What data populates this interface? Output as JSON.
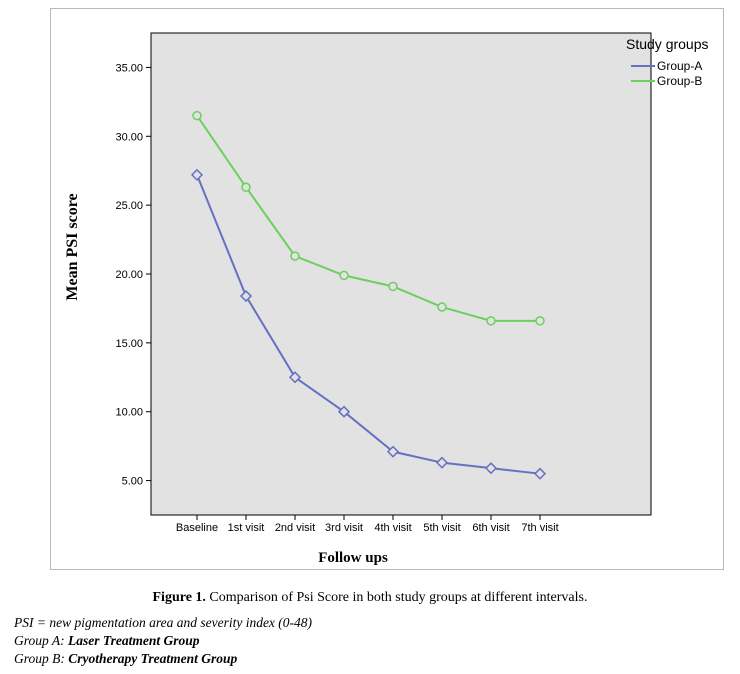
{
  "caption": {
    "label": "Figure 1.",
    "text": " Comparison of Psi Score in both study groups at different intervals."
  },
  "notes": {
    "psi": "PSI = new pigmentation area and severity index (0-48)",
    "group_a_prefix": "Group A: ",
    "group_a_text": "Laser Treatment Group",
    "group_b_prefix": "Group B: ",
    "group_b_text": "Cryotherapy Treatment Group"
  },
  "colors": {
    "group_a": "#6670c4",
    "group_b": "#6ccf5e",
    "plot_bg": "#e2e2e2"
  },
  "chart_data": {
    "type": "line",
    "xlabel": "Follow ups",
    "ylabel": "Mean PSI score",
    "categories": [
      "Baseline",
      "1st visit",
      "2nd visit",
      "3rd visit",
      "4th visit",
      "5th visit",
      "6th visit",
      "7th visit"
    ],
    "ylim": [
      2.5,
      37.5
    ],
    "yticks": [
      "5.00",
      "10.00",
      "15.00",
      "20.00",
      "25.00",
      "30.00",
      "35.00"
    ],
    "ytick_values": [
      5,
      10,
      15,
      20,
      25,
      30,
      35
    ],
    "grid": false,
    "legend_title": "Study groups",
    "legend_position": "right",
    "series": [
      {
        "name": "Group-A",
        "marker": "diamond",
        "values": [
          27.2,
          18.4,
          12.5,
          10.0,
          7.1,
          6.3,
          5.9,
          5.5
        ]
      },
      {
        "name": "Group-B",
        "marker": "circle",
        "values": [
          31.5,
          26.3,
          21.3,
          19.9,
          19.1,
          17.6,
          16.6,
          16.6
        ]
      }
    ]
  }
}
